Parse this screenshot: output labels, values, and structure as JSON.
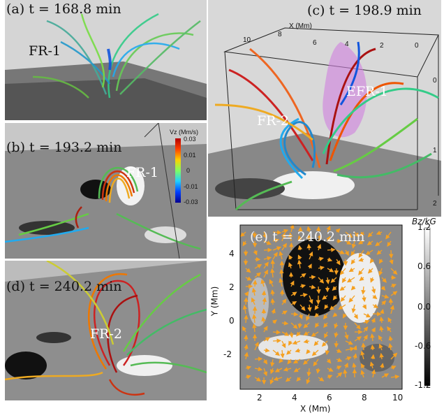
{
  "panels": {
    "a": {
      "label": "(a) t = 168.8 min",
      "fr": "FR-1"
    },
    "b": {
      "label": "(b) t = 193.2 min",
      "fr": "FR-1",
      "colorbar": {
        "title": "Vz (Mm/s)",
        "ticks": [
          "0.03",
          "0.01",
          "0",
          "-0.01",
          "-0.03"
        ]
      }
    },
    "c": {
      "label": "(c) t = 198.9 min",
      "fr_left": "FR-2",
      "fr_right": "EFR-1",
      "box_axis_label": "X (Mm)",
      "top_ticks": [
        "10",
        "8",
        "6",
        "4",
        "2",
        "0"
      ],
      "right_ticks": [
        "0",
        "1",
        "2"
      ]
    },
    "d": {
      "label": "(d) t = 240.2 min",
      "fr": "FR-2"
    },
    "e": {
      "label": "(e) t = 240.2 min",
      "xlabel": "X (Mm)",
      "ylabel": "Y (Mm)",
      "xticks": [
        "2",
        "4",
        "6",
        "8",
        "10"
      ],
      "yticks": [
        "4",
        "2",
        "0",
        "-2"
      ],
      "colorbar": {
        "title": "Bz/kG",
        "ticks": [
          "1.2",
          "0.6",
          "0.0",
          "-0.6",
          "-1.2"
        ]
      }
    }
  },
  "colors": {
    "arrow": "#f5a020",
    "panel_bg": "#d6d6d6"
  }
}
